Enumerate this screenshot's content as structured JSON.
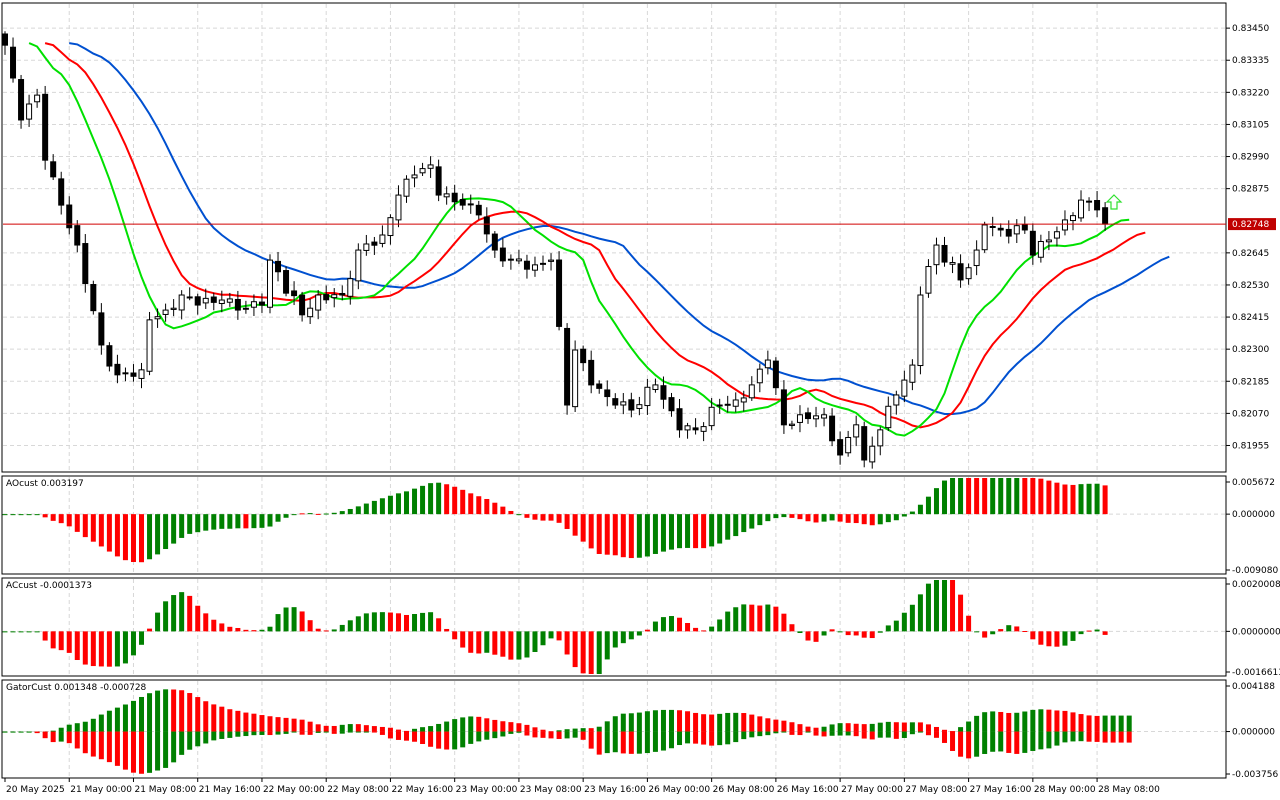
{
  "chart": {
    "symbol_timeframe": "H1",
    "current_price": "0.82748",
    "colors": {
      "bull_body": "#ffffff",
      "bear_body": "#000000",
      "jaw": "#0050d0",
      "teeth": "#ff0000",
      "lips": "#00e000",
      "up": "#008000",
      "down": "#ff0000",
      "price_line": "#d00000"
    }
  },
  "chart_data": [
    {
      "type": "candlestick",
      "title": "Main price chart",
      "price_ticks": [
        "0.83450",
        "0.83335",
        "0.83220",
        "0.83105",
        "0.82990",
        "0.82875",
        "0.82645",
        "0.82530",
        "0.82415",
        "0.82300",
        "0.82185",
        "0.82070",
        "0.81955"
      ],
      "ylim": [
        0.8186,
        0.8354
      ],
      "close_keypoints": [
        [
          0,
          0.83389
        ],
        [
          2,
          0.83121
        ],
        [
          4,
          0.8321
        ],
        [
          5,
          0.82977
        ],
        [
          7,
          0.82816
        ],
        [
          9,
          0.82673
        ],
        [
          12,
          0.82315
        ],
        [
          14,
          0.82208
        ],
        [
          17,
          0.82226
        ],
        [
          18,
          0.82405
        ],
        [
          20,
          0.8244
        ],
        [
          22,
          0.82494
        ],
        [
          24,
          0.82458
        ],
        [
          27,
          0.82476
        ],
        [
          29,
          0.8244
        ],
        [
          32,
          0.82458
        ],
        [
          33,
          0.82619
        ],
        [
          37,
          0.82423
        ],
        [
          39,
          0.82494
        ],
        [
          42,
          0.82494
        ],
        [
          44,
          0.82655
        ],
        [
          47,
          0.82709
        ],
        [
          49,
          0.82852
        ],
        [
          51,
          0.82924
        ],
        [
          53,
          0.8296
        ],
        [
          54,
          0.82852
        ],
        [
          57,
          0.82816
        ],
        [
          59,
          0.82781
        ],
        [
          61,
          0.82655
        ],
        [
          63,
          0.82619
        ],
        [
          66,
          0.82602
        ],
        [
          68,
          0.82619
        ],
        [
          70,
          0.821
        ],
        [
          71,
          0.82297
        ],
        [
          73,
          0.82172
        ],
        [
          76,
          0.821
        ],
        [
          78,
          0.82082
        ],
        [
          81,
          0.82172
        ],
        [
          84,
          0.82011
        ],
        [
          86,
          0.82011
        ],
        [
          89,
          0.821
        ],
        [
          91,
          0.82118
        ],
        [
          93,
          0.82172
        ],
        [
          95,
          0.82261
        ],
        [
          97,
          0.82029
        ],
        [
          99,
          0.82065
        ],
        [
          102,
          0.82065
        ],
        [
          104,
          0.81921
        ],
        [
          106,
          0.82029
        ],
        [
          107,
          0.81903
        ],
        [
          109,
          0.82011
        ],
        [
          111,
          0.82136
        ],
        [
          113,
          0.82243
        ],
        [
          114,
          0.82494
        ],
        [
          116,
          0.82673
        ],
        [
          119,
          0.82548
        ],
        [
          121,
          0.82655
        ],
        [
          122,
          0.82745
        ],
        [
          124,
          0.82727
        ],
        [
          127,
          0.82727
        ],
        [
          128,
          0.82637
        ],
        [
          130,
          0.82691
        ],
        [
          132,
          0.82763
        ],
        [
          134,
          0.82834
        ],
        [
          136,
          0.82799
        ],
        [
          137,
          0.82748
        ]
      ],
      "alligator": {
        "jaw": [
          13,
          8
        ],
        "teeth": [
          8,
          5
        ],
        "lips": [
          5,
          3
        ]
      }
    },
    {
      "type": "bar",
      "title": "AOcust 0.003197",
      "ticks": [
        "0.005672",
        "0.000000",
        "-0.009080"
      ]
    },
    {
      "type": "bar",
      "title": "ACcust -0.0001373",
      "ticks": [
        "0.0020008",
        "0.0000000",
        "-0.0016613"
      ]
    },
    {
      "type": "bar",
      "title": "GatorCust 0.001348 -0.000728",
      "ticks": [
        "0.004188",
        "0.000000",
        "-0.003756"
      ]
    }
  ],
  "time_labels": [
    "20 May 2025",
    "21 May 00:00",
    "21 May 08:00",
    "21 May 16:00",
    "22 May 00:00",
    "22 May 08:00",
    "22 May 16:00",
    "23 May 00:00",
    "23 May 08:00",
    "23 May 16:00",
    "26 May 00:00",
    "26 May 08:00",
    "26 May 16:00",
    "27 May 00:00",
    "27 May 08:00",
    "27 May 16:00",
    "28 May 00:00",
    "28 May 08:00"
  ]
}
